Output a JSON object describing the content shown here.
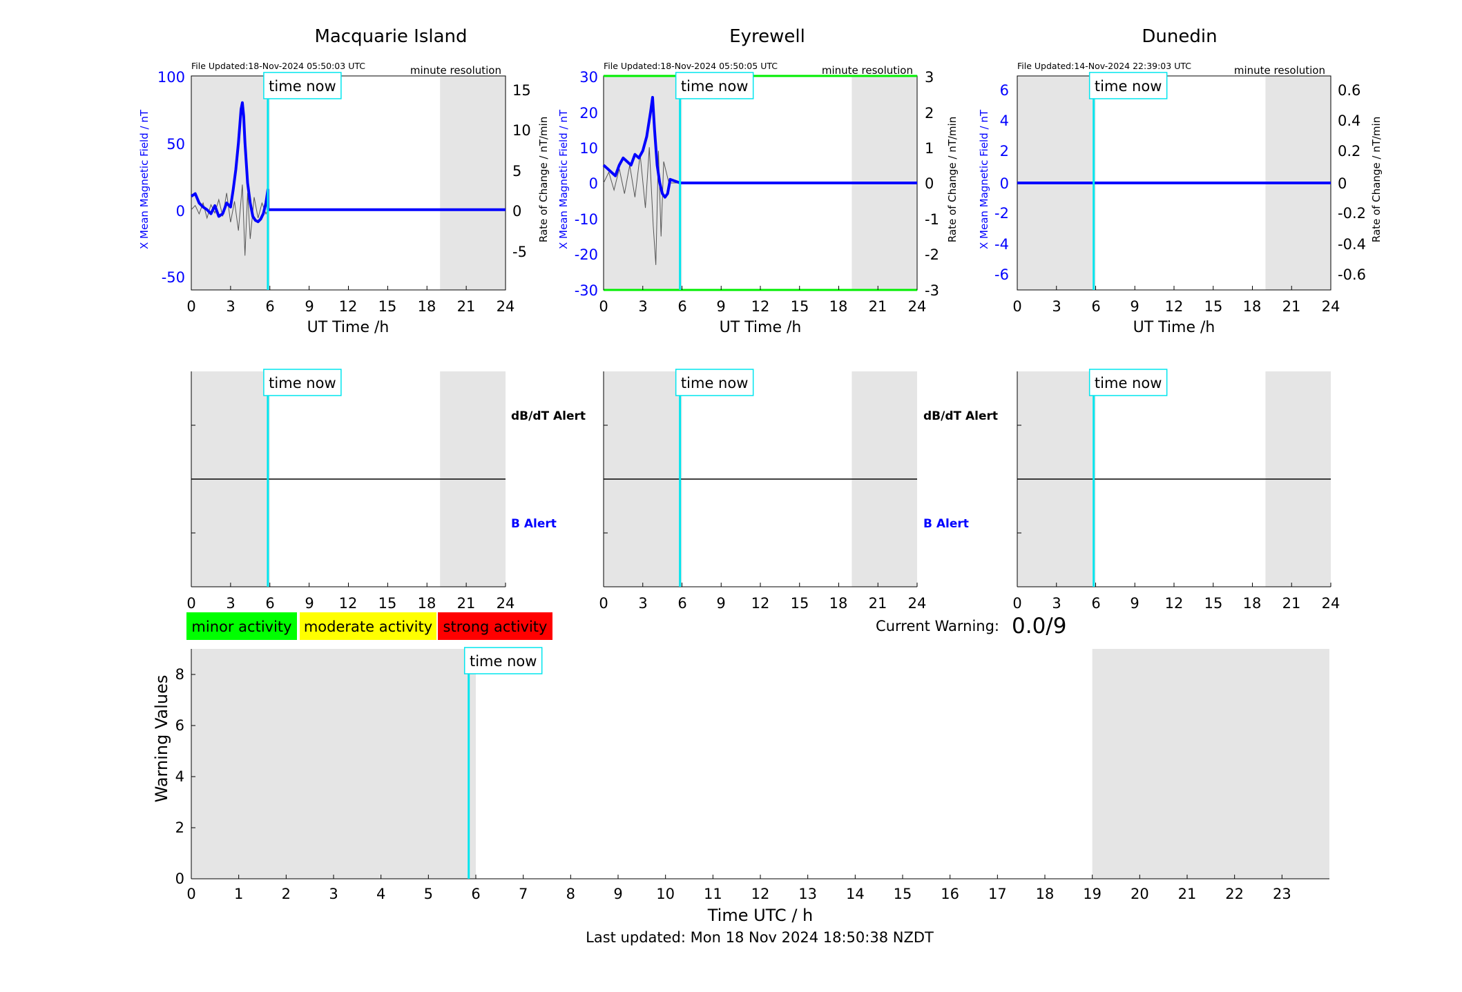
{
  "colors": {
    "x_field": "#0000ff",
    "rate": "#555555",
    "time_now": "#00e5ee",
    "shade": "#e5e5e5",
    "alert_dbdt": "#000000",
    "alert_b": "#0000ff",
    "minor": "#00ff00",
    "moderate": "#ffff00",
    "strong": "#ff0000",
    "limit_line": "#00ee00"
  },
  "time_now_label": "time now",
  "time_now_h": 5.85,
  "resolution_label": "minute resolution",
  "stations": [
    {
      "title": "Macquarie Island",
      "file_updated": "File Updated:18-Nov-2024 05:50:03 UTC",
      "ylabel_left": "X Mean Magnetic Field / nT",
      "ylabel_right": "Rate of Change / nT/min",
      "xlabel": "UT Time /h",
      "yticks_left": [
        "100",
        "50",
        "0",
        "-50"
      ],
      "yticks_right": [
        "15",
        "10",
        "5",
        "0",
        "-5"
      ],
      "xticks": [
        "0",
        "3",
        "6",
        "9",
        "12",
        "15",
        "18",
        "21",
        "24"
      ],
      "alert_dbdt": "dB/dT Alert",
      "alert_b": "B Alert"
    },
    {
      "title": "Eyrewell",
      "file_updated": "File Updated:18-Nov-2024 05:50:05 UTC",
      "ylabel_left": "X Mean Magnetic Field / nT",
      "ylabel_right": "Rate of Change / nT/min",
      "xlabel": "UT Time /h",
      "yticks_left": [
        "30",
        "20",
        "10",
        "0",
        "-10",
        "-20",
        "-30"
      ],
      "yticks_right": [
        "3",
        "2",
        "1",
        "0",
        "-1",
        "-2",
        "-3"
      ],
      "xticks": [
        "0",
        "3",
        "6",
        "9",
        "12",
        "15",
        "18",
        "21",
        "24"
      ],
      "alert_dbdt": "dB/dT Alert",
      "alert_b": "B Alert"
    },
    {
      "title": "Dunedin",
      "file_updated": "File Updated:14-Nov-2024 22:39:03 UTC",
      "ylabel_left": "X Mean Magnetic Field / nT",
      "ylabel_right": "Rate of Change / nT/min",
      "xlabel": "UT Time /h",
      "yticks_left": [
        "6",
        "4",
        "2",
        "0",
        "-2",
        "-4",
        "-6"
      ],
      "yticks_right": [
        "0.6",
        "0.4",
        "0.2",
        "0",
        "-0.2",
        "-0.4",
        "-0.6"
      ],
      "xticks": [
        "0",
        "3",
        "6",
        "9",
        "12",
        "15",
        "18",
        "21",
        "24"
      ]
    }
  ],
  "legend": {
    "minor": "minor activity",
    "moderate": "moderate activity",
    "strong": "strong activity"
  },
  "current_warning_label": "Current Warning:",
  "current_warning_value": "0.0/9",
  "chart_data": [
    {
      "type": "line",
      "title": "Macquarie Island",
      "xlabel": "UT Time /h",
      "ylabel": "X Mean Magnetic Field / nT",
      "y2label": "Rate of Change / nT/min",
      "xlim": [
        0,
        24
      ],
      "ylim": [
        -60,
        100
      ],
      "y2lim": [
        -9.6,
        16
      ],
      "shaded_hours": [
        [
          0,
          6
        ],
        [
          19,
          24
        ]
      ],
      "series": [
        {
          "x": [
            0,
            0.3,
            0.6,
            0.9,
            1.2,
            1.5,
            1.8,
            2.1,
            2.4,
            2.7,
            3.0,
            3.2,
            3.4,
            3.6,
            3.8,
            3.9,
            4.0,
            4.1,
            4.3,
            4.5,
            4.7,
            4.9,
            5.1,
            5.3,
            5.5,
            5.7,
            5.85,
            5.86,
            24
          ],
          "y": [
            10,
            12,
            5,
            2,
            0,
            -3,
            3,
            -5,
            -3,
            5,
            2,
            15,
            30,
            50,
            75,
            80,
            70,
            50,
            20,
            5,
            -5,
            -8,
            -9,
            -7,
            -3,
            5,
            15,
            0,
            0
          ]
        },
        {
          "x": [
            0,
            0.3,
            0.6,
            0.9,
            1.2,
            1.5,
            1.8,
            2.1,
            2.4,
            2.7,
            3.0,
            3.3,
            3.6,
            3.9,
            4.1,
            4.3,
            4.5,
            4.8,
            5.1,
            5.4,
            5.7,
            5.86,
            24
          ],
          "y": [
            0,
            0.5,
            -0.5,
            0.8,
            -1.0,
            0.6,
            -0.4,
            1.2,
            -0.8,
            2.0,
            -1.5,
            1.0,
            -2.5,
            3.0,
            -5.5,
            2.0,
            -3.5,
            1.5,
            -1.0,
            0.8,
            -0.5,
            0,
            0
          ]
        }
      ]
    },
    {
      "type": "line",
      "title": "Eyrewell",
      "xlabel": "UT Time /h",
      "ylabel": "X Mean Magnetic Field / nT",
      "y2label": "Rate of Change / nT/min",
      "xlim": [
        0,
        24
      ],
      "ylim": [
        -30,
        30
      ],
      "y2lim": [
        -3,
        3
      ],
      "limits": [
        30,
        -30
      ],
      "shaded_hours": [
        [
          0,
          6
        ],
        [
          19,
          24
        ]
      ],
      "series": [
        {
          "x": [
            0,
            0.3,
            0.6,
            0.9,
            1.2,
            1.5,
            1.8,
            2.1,
            2.4,
            2.7,
            3.0,
            3.3,
            3.6,
            3.75,
            3.9,
            4.1,
            4.3,
            4.5,
            4.7,
            4.9,
            5.1,
            5.86,
            24
          ],
          "y": [
            5,
            4,
            3,
            2,
            5,
            7,
            6,
            5,
            8,
            7,
            9,
            13,
            20,
            24,
            15,
            5,
            0,
            -3,
            -4,
            -3,
            1,
            0,
            0
          ]
        },
        {
          "x": [
            0,
            0.4,
            0.8,
            1.2,
            1.6,
            2.0,
            2.4,
            2.8,
            3.2,
            3.5,
            3.8,
            4.0,
            4.2,
            4.4,
            4.6,
            4.8,
            5.0,
            5.86,
            24
          ],
          "y": [
            0,
            0.3,
            -0.2,
            0.4,
            -0.3,
            0.5,
            -0.4,
            0.8,
            -0.7,
            1.0,
            -1.2,
            -2.3,
            0.9,
            -1.5,
            0.6,
            0.3,
            0,
            0,
            0
          ]
        }
      ]
    },
    {
      "type": "line",
      "title": "Dunedin",
      "xlabel": "UT Time /h",
      "ylabel": "X Mean Magnetic Field / nT",
      "y2label": "Rate of Change / nT/min",
      "xlim": [
        0,
        24
      ],
      "ylim": [
        -7,
        7
      ],
      "y2lim": [
        -0.7,
        0.7
      ],
      "shaded_hours": [
        [
          0,
          6
        ],
        [
          19,
          24
        ]
      ],
      "series": [
        {
          "x": [
            0,
            24
          ],
          "y": [
            0,
            0
          ]
        }
      ]
    },
    {
      "type": "bar",
      "ylabel": "Warning Values",
      "xlabel": "Time UTC / h",
      "xlim": [
        0,
        24
      ],
      "ylim": [
        0,
        9
      ],
      "xticks": [
        "0",
        "1",
        "2",
        "3",
        "4",
        "5",
        "6",
        "7",
        "8",
        "9",
        "10",
        "11",
        "12",
        "13",
        "14",
        "15",
        "16",
        "17",
        "18",
        "19",
        "20",
        "21",
        "22",
        "23"
      ],
      "yticks": [
        "0",
        "2",
        "4",
        "6",
        "8"
      ],
      "shaded_hours": [
        [
          0,
          6
        ],
        [
          19,
          24
        ]
      ],
      "values": []
    }
  ],
  "footer": "Last updated: Mon 18 Nov 2024 18:50:38 NZDT"
}
